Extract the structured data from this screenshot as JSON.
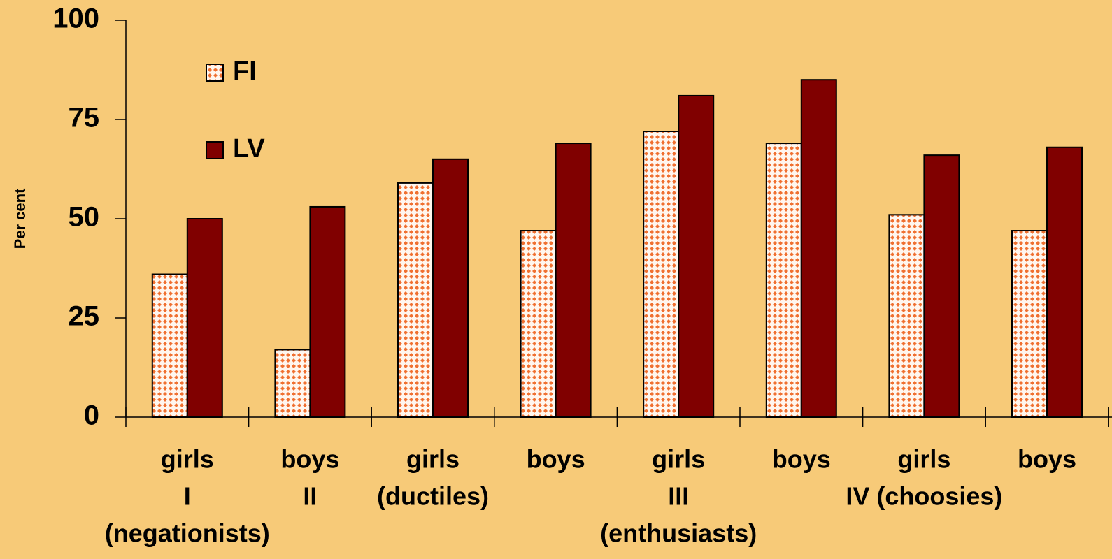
{
  "chart_data": {
    "type": "bar",
    "y_label": "Per cent",
    "categories": [
      [
        "girls",
        "I",
        "(negationists)"
      ],
      [
        "boys",
        "II"
      ],
      [
        "girls",
        "(ductiles)"
      ],
      [
        "boys"
      ],
      [
        "girls",
        "III",
        "(enthusiasts)"
      ],
      [
        "boys"
      ],
      [
        "girls",
        "IV (choosies)"
      ],
      [
        "boys"
      ]
    ],
    "series": [
      {
        "name": "FI",
        "color": "#f07030",
        "pattern": "dots",
        "values": [
          36,
          17,
          59,
          47,
          72,
          69,
          51,
          47
        ]
      },
      {
        "name": "LV",
        "color": "#800000",
        "values": [
          50,
          53,
          65,
          69,
          81,
          85,
          66,
          68
        ]
      }
    ],
    "ylim": [
      0,
      100
    ],
    "yticks": [
      0,
      25,
      50,
      75,
      100
    ],
    "grid": false,
    "legend": "top-left"
  }
}
